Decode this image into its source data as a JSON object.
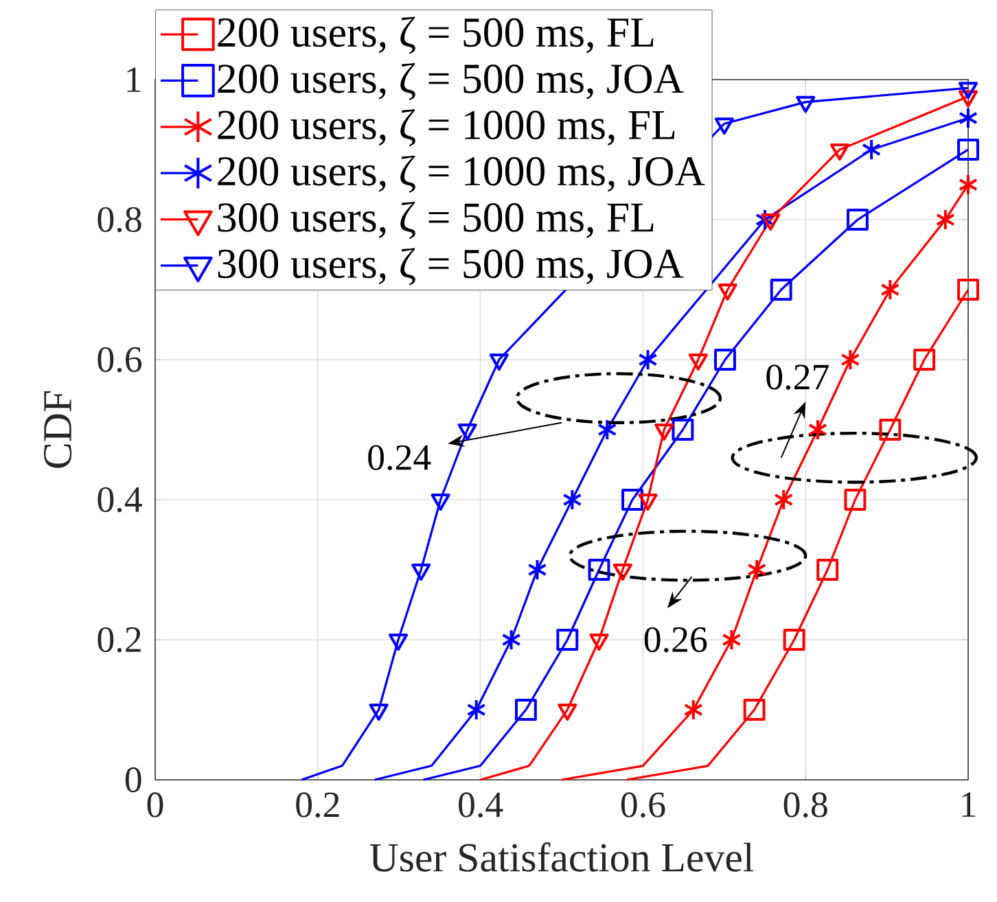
{
  "chart_data": {
    "type": "line",
    "xlabel": "User Satisfaction Level",
    "ylabel": "CDF",
    "xlim": [
      0,
      1
    ],
    "ylim": [
      0,
      1
    ],
    "xticks": [
      0,
      0.2,
      0.4,
      0.6,
      0.8,
      1
    ],
    "yticks": [
      0,
      0.2,
      0.4,
      0.6,
      0.8,
      1
    ],
    "grid": true,
    "legend": "top left",
    "series": [
      {
        "name": "200 users, ζ = 500 ms, FL",
        "color": "#ff0000",
        "marker": "square",
        "x": [
          0.58,
          0.68,
          0.737,
          0.786,
          0.827,
          0.861,
          0.904,
          0.946,
          1.0
        ],
        "values": [
          0,
          0.02,
          0.1,
          0.2,
          0.3,
          0.4,
          0.5,
          0.6,
          0.7
        ]
      },
      {
        "name": "200 users, ζ = 500 ms, JOA",
        "color": "#0000ff",
        "marker": "square",
        "x": [
          0.33,
          0.4,
          0.456,
          0.507,
          0.546,
          0.587,
          0.649,
          0.701,
          0.77,
          0.864,
          1.0
        ],
        "values": [
          0,
          0.02,
          0.1,
          0.2,
          0.3,
          0.4,
          0.5,
          0.6,
          0.7,
          0.8,
          0.9
        ]
      },
      {
        "name": "200 users, ζ = 1000 ms, FL",
        "color": "#ff0000",
        "marker": "cross",
        "x": [
          0.5,
          0.6,
          0.662,
          0.709,
          0.74,
          0.773,
          0.815,
          0.855,
          0.904,
          0.972,
          1.0
        ],
        "values": [
          0,
          0.02,
          0.1,
          0.2,
          0.3,
          0.4,
          0.5,
          0.6,
          0.7,
          0.8,
          0.85
        ]
      },
      {
        "name": "200 users, ζ = 1000 ms, JOA",
        "color": "#0000ff",
        "marker": "cross",
        "x": [
          0.27,
          0.34,
          0.395,
          0.438,
          0.47,
          0.513,
          0.556,
          0.606,
          0.68,
          0.75,
          0.881,
          1.0
        ],
        "values": [
          0,
          0.02,
          0.1,
          0.2,
          0.3,
          0.4,
          0.5,
          0.6,
          null,
          0.8,
          0.9,
          0.945
        ]
      },
      {
        "name": "300 users, ζ = 500 ms, FL",
        "color": "#ff0000",
        "marker": "triangle",
        "x": [
          0.4,
          0.46,
          0.507,
          0.546,
          0.575,
          0.606,
          0.626,
          0.668,
          0.704,
          0.757,
          0.842,
          1.0
        ],
        "values": [
          0,
          0.02,
          0.1,
          0.2,
          0.3,
          0.4,
          0.5,
          0.6,
          0.7,
          0.8,
          0.9,
          0.976
        ]
      },
      {
        "name": "300 users, ζ = 500 ms, JOA",
        "color": "#0000ff",
        "marker": "triangle",
        "x": [
          0.18,
          0.23,
          0.275,
          0.299,
          0.327,
          0.351,
          0.384,
          0.423,
          0.45,
          0.5,
          0.58,
          0.7,
          0.8,
          1.0
        ],
        "values": [
          0,
          0.02,
          0.1,
          0.2,
          0.3,
          0.4,
          0.5,
          0.6,
          null,
          null,
          null,
          0.937,
          0.968,
          0.988
        ]
      }
    ],
    "annotations": [
      "0.24",
      "0.27",
      "0.26"
    ]
  }
}
